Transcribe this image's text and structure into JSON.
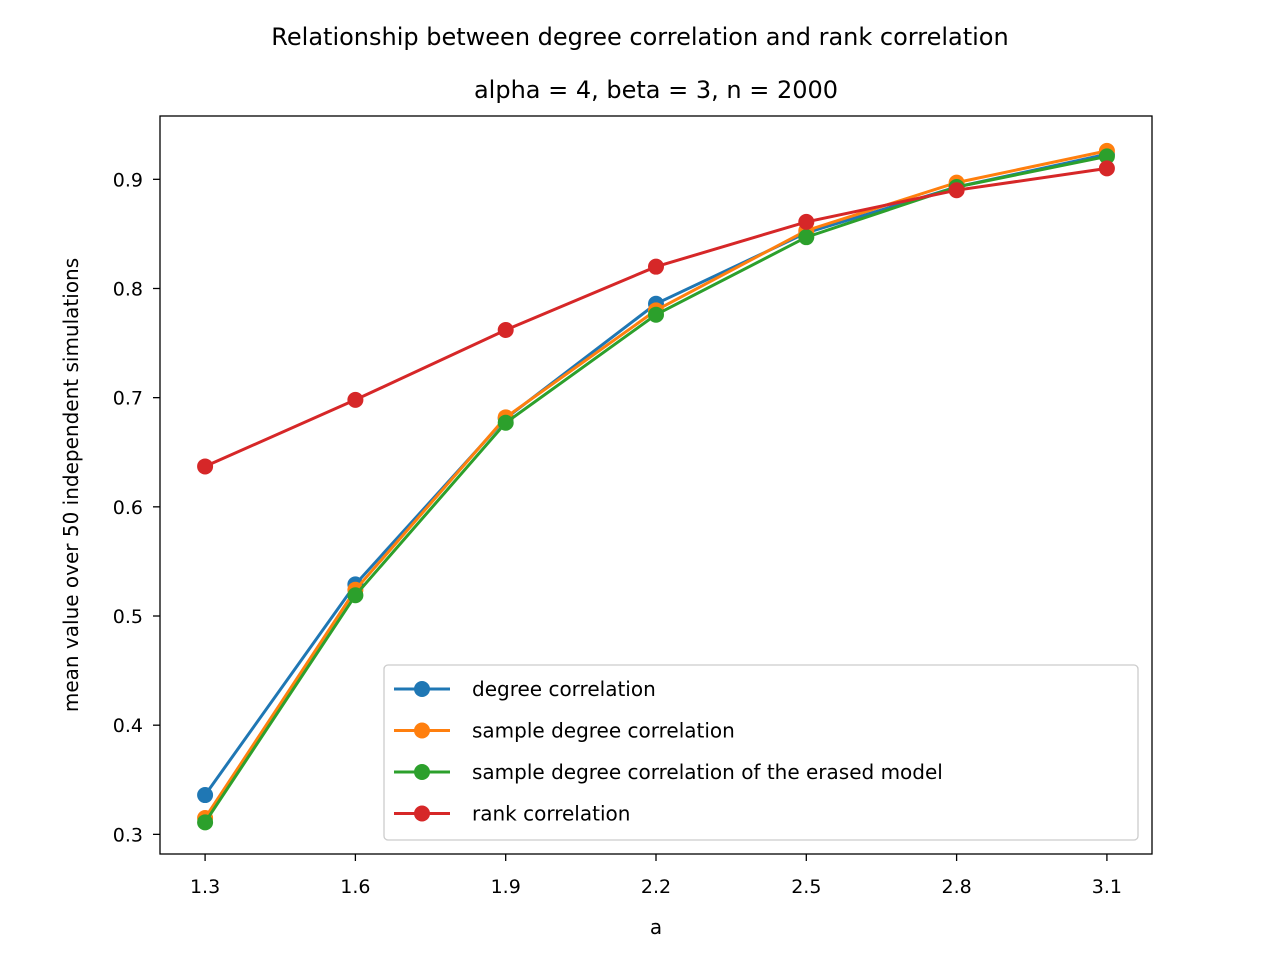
{
  "chart_data": {
    "type": "line",
    "title": "Relationship between degree correlation and rank correlation",
    "subtitle": "alpha = 4, beta = 3, n = 2000",
    "xlabel": "a",
    "ylabel": "mean value over 50 independent simulations",
    "x": [
      1.3,
      1.6,
      1.9,
      2.2,
      2.5,
      2.8,
      3.1
    ],
    "x_tick_labels": [
      "1.3",
      "1.6",
      "1.9",
      "2.2",
      "2.5",
      "2.8",
      "3.1"
    ],
    "y_tick_labels": [
      "0.3",
      "0.4",
      "0.5",
      "0.6",
      "0.7",
      "0.8",
      "0.9"
    ],
    "xlim": [
      1.21,
      3.19
    ],
    "ylim": [
      0.282,
      0.958
    ],
    "grid": false,
    "legend_position": "lower-right",
    "series": [
      {
        "name": "degree correlation",
        "color": "#1f77b4",
        "values": [
          0.336,
          0.529,
          0.681,
          0.786,
          0.851,
          0.893,
          0.923
        ]
      },
      {
        "name": "sample degree correlation",
        "color": "#ff7f0e",
        "values": [
          0.315,
          0.524,
          0.682,
          0.78,
          0.853,
          0.897,
          0.926
        ]
      },
      {
        "name": "sample degree correlation of the erased model",
        "color": "#2ca02c",
        "values": [
          0.311,
          0.519,
          0.677,
          0.776,
          0.847,
          0.893,
          0.921
        ]
      },
      {
        "name": "rank correlation",
        "color": "#d62728",
        "values": [
          0.637,
          0.698,
          0.762,
          0.82,
          0.861,
          0.89,
          0.91
        ]
      }
    ]
  }
}
